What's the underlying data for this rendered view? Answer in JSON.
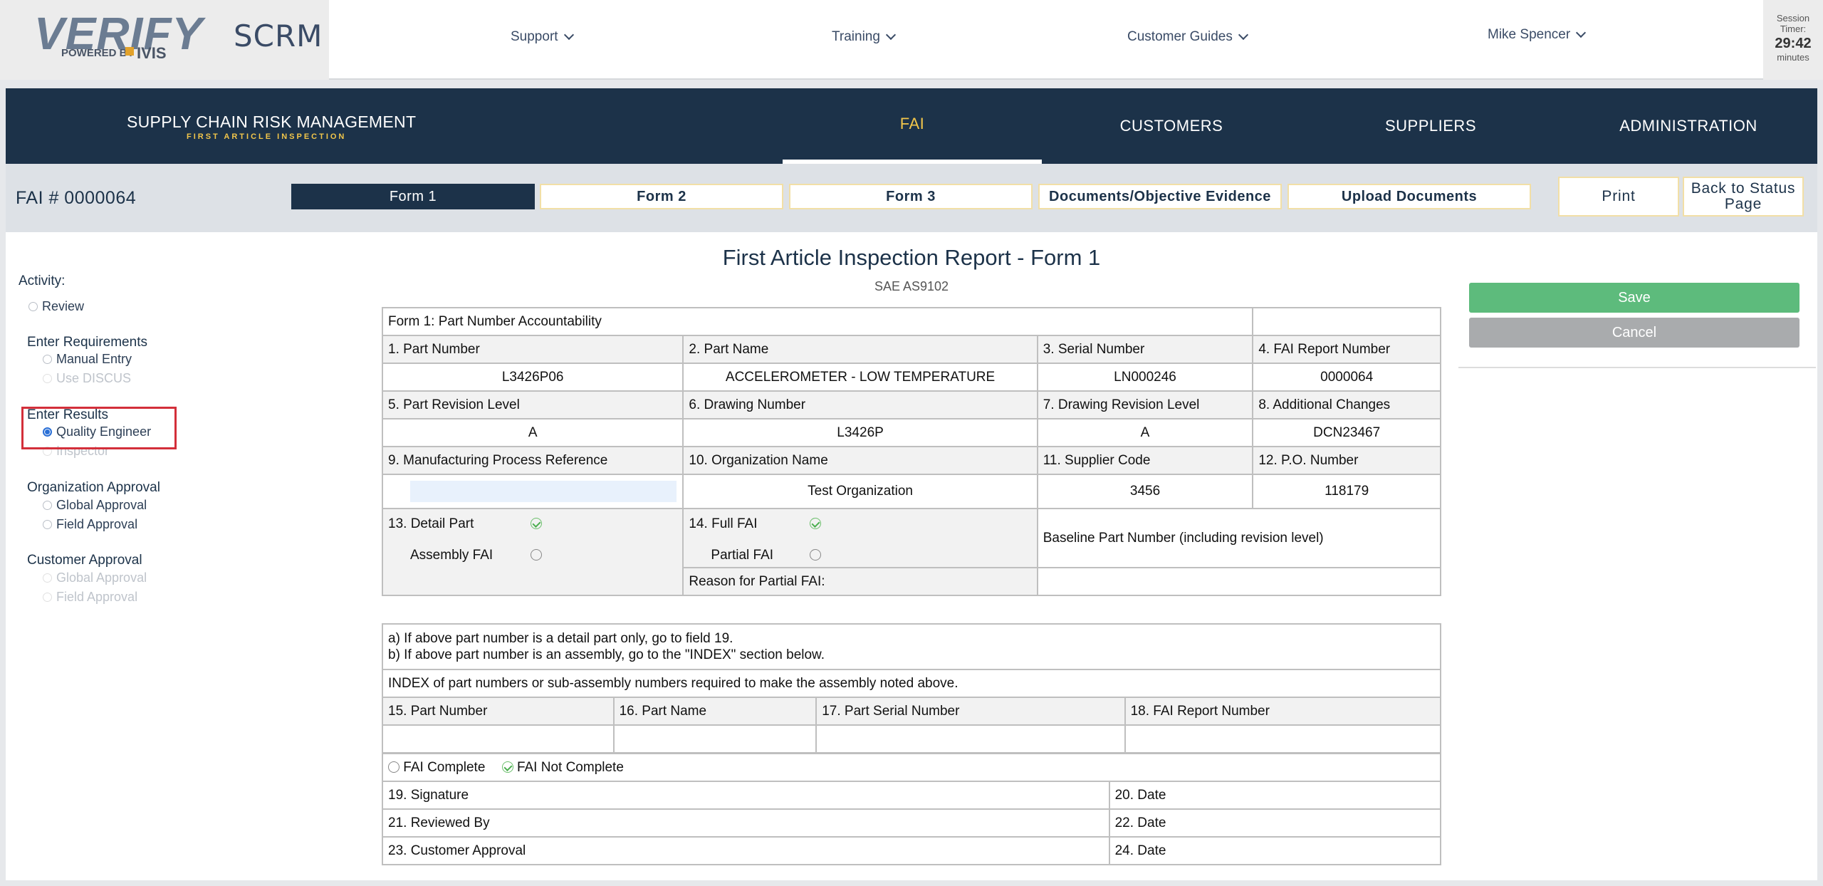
{
  "topbar": {
    "logo_text": "VERIFY",
    "logo_powered": "POWERED BY",
    "logo_ivis": "IVIS",
    "app_short": "SCRM",
    "nav": [
      "Support",
      "Training",
      "Customer Guides",
      "Mike Spencer"
    ],
    "session": {
      "label1": "Session",
      "label2": "Timer:",
      "time": "29:42",
      "unit": "minutes"
    }
  },
  "mainnav": {
    "title": "SUPPLY CHAIN RISK MANAGEMENT",
    "subtitle": "FIRST ARTICLE INSPECTION",
    "tabs": [
      "FAI",
      "CUSTOMERS",
      "SUPPLIERS",
      "ADMINISTRATION"
    ],
    "active_tab": "FAI"
  },
  "subnav": {
    "fai_number": "FAI # 0000064",
    "tabs": [
      "Form 1",
      "Form 2",
      "Form 3",
      "Documents/Objective Evidence",
      "Upload Documents"
    ],
    "active_tab": "Form 1",
    "print_label": "Print",
    "back_label_1": "Back to Status",
    "back_label_2": "Page"
  },
  "left": {
    "activity_label": "Activity:",
    "review_label": "Review",
    "enter_requirements": "Enter Requirements",
    "manual_entry": "Manual Entry",
    "use_discus": "Use DISCUS",
    "enter_results": "Enter Results",
    "quality_engineer": "Quality Engineer",
    "inspector": "Inspector",
    "org_approval": "Organization Approval",
    "global_approval": "Global Approval",
    "field_approval": "Field Approval",
    "customer_approval": "Customer Approval",
    "cust_global_approval": "Global Approval",
    "cust_field_approval": "Field Approval"
  },
  "form": {
    "title": "First Article Inspection Report - Form 1",
    "subtitle": "SAE AS9102",
    "section_title": "Form 1: Part Number Accountability",
    "h1": "1. Part Number",
    "h2": "2. Part Name",
    "h3": "3. Serial Number",
    "h4": "4. FAI Report Number",
    "v1": "L3426P06",
    "v2": "ACCELEROMETER - LOW TEMPERATURE",
    "v3": "LN000246",
    "v4": "0000064",
    "h5": "5. Part Revision Level",
    "h6": "6. Drawing Number",
    "h7": "7. Drawing Revision Level",
    "h8": "8. Additional Changes",
    "v5": "A",
    "v6": "L3426P",
    "v7": "A",
    "v8": "DCN23467",
    "h9": "9. Manufacturing Process Reference",
    "h10": "10. Organization Name",
    "h11": "11. Supplier Code",
    "h12": "12. P.O. Number",
    "v9": "",
    "v10": "Test Organization",
    "v11": "3456",
    "v12": "118179",
    "h13": "13. Detail Part",
    "assembly_fai": "Assembly FAI",
    "h14": "14. Full FAI",
    "partial_fai": "Partial FAI",
    "baseline": "Baseline Part Number (including revision level)",
    "reason_partial": "Reason for Partial FAI:",
    "note_a": "a) If above part number is a detail part only, go to field 19.",
    "note_b": "b) If above part number is an assembly, go to the \"INDEX\" section below.",
    "index_text": "INDEX of part numbers or sub-assembly numbers required to make the assembly noted above.",
    "h15": "15. Part Number",
    "h16": "16. Part Name",
    "h17": "17. Part Serial Number",
    "h18": "18. FAI Report Number",
    "fai_complete": "FAI Complete",
    "fai_not_complete": "FAI Not Complete",
    "h19": "19. Signature",
    "h20": "20. Date",
    "h21": "21. Reviewed By",
    "h22": "22. Date",
    "h23": "23. Customer Approval",
    "h24": "24. Date"
  },
  "buttons": {
    "save": "Save",
    "cancel": "Cancel"
  },
  "colors": {
    "navy": "#1c3249",
    "gold": "#f2c64a",
    "save_green": "#5dbb7c",
    "cancel_gray": "#a9abad",
    "highlight_red": "#d32f3a"
  }
}
